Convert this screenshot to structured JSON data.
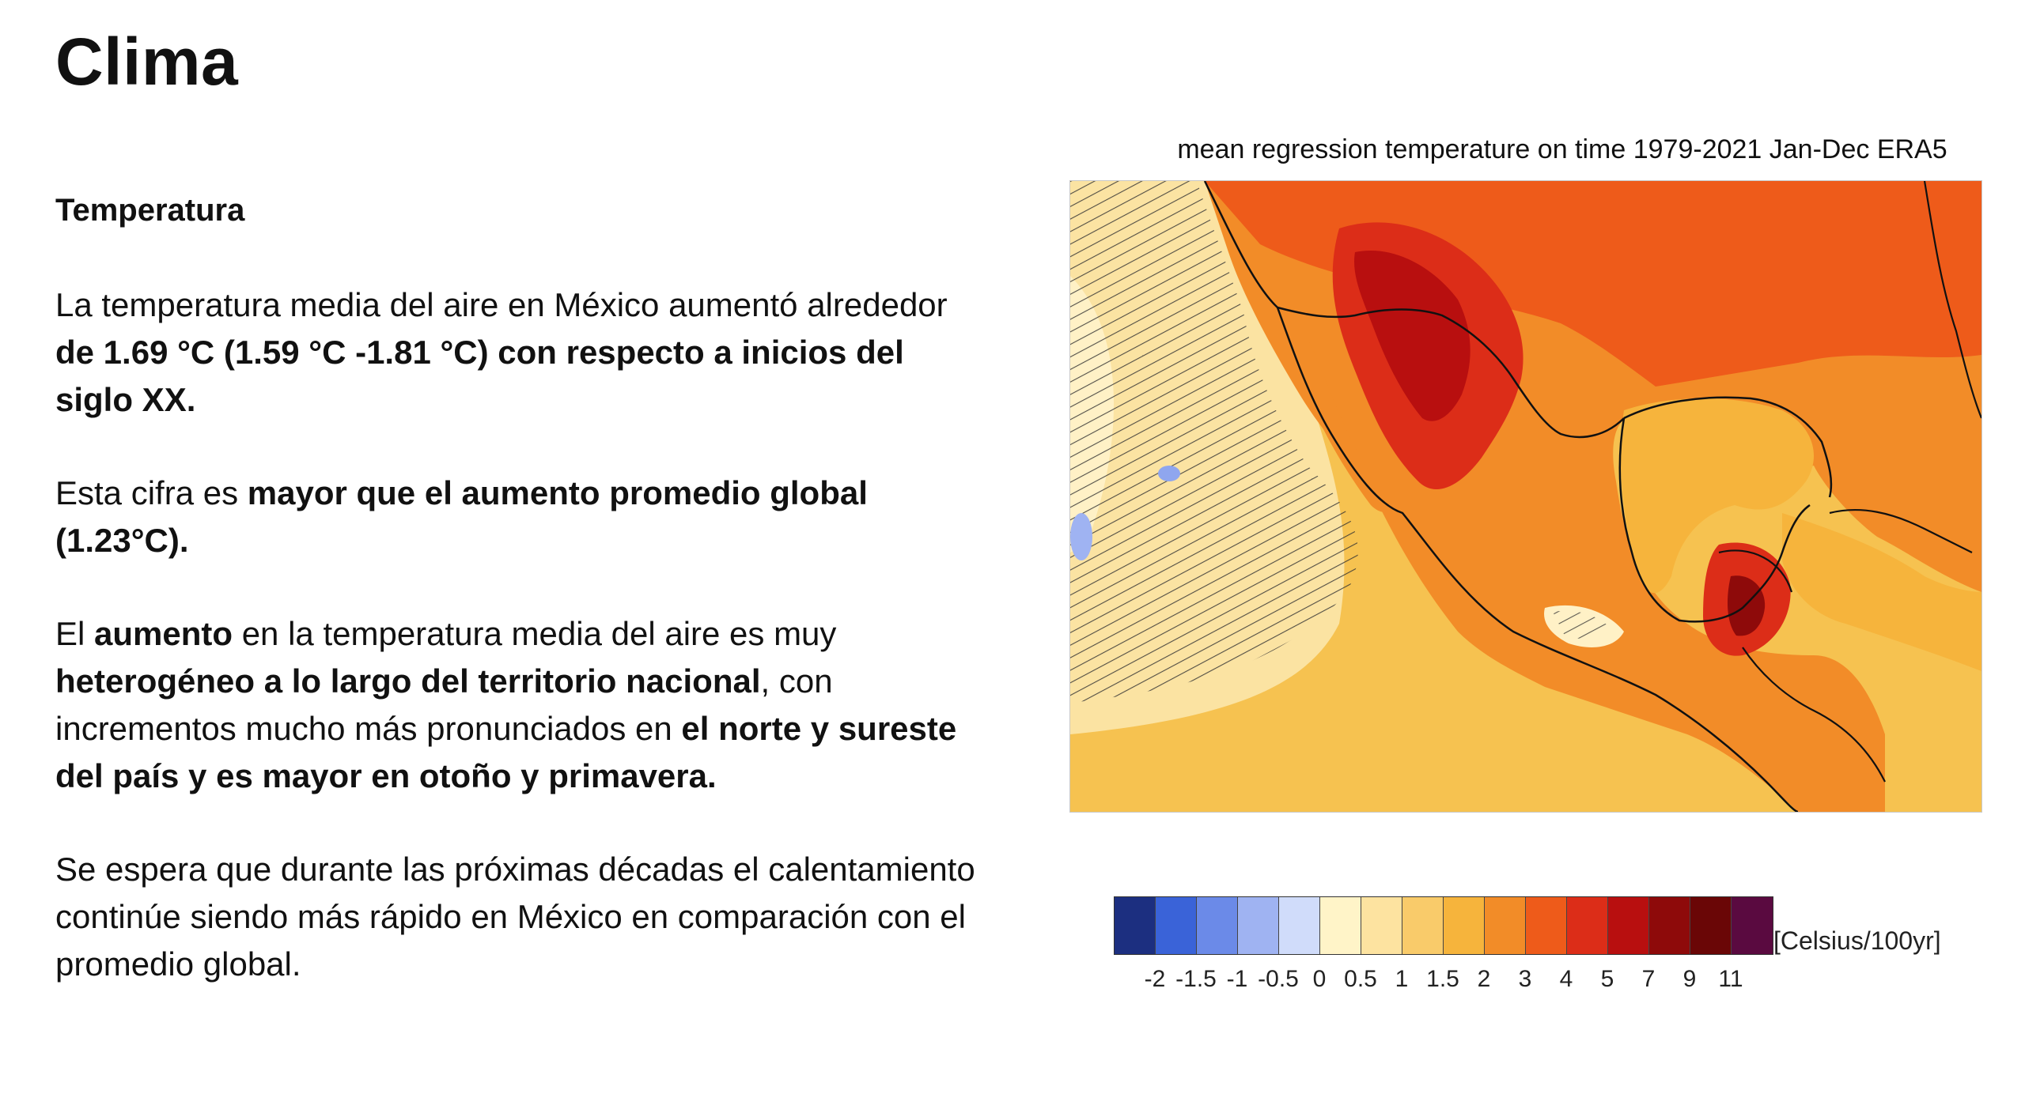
{
  "page": {
    "title": "Clima",
    "section_heading": "Temperatura"
  },
  "paragraphs": [
    {
      "id": "p1",
      "segments": [
        {
          "text": "La temperatura media del aire en México aumentó alrededor ",
          "bold": false
        },
        {
          "text": "de 1.69 °C (1.59 °C -1.81 °C) con respecto a inicios del siglo XX.",
          "bold": true
        }
      ]
    },
    {
      "id": "p2",
      "segments": [
        {
          "text": "Esta cifra es ",
          "bold": false
        },
        {
          "text": "mayor que el aumento promedio global (1.23°C).",
          "bold": true
        }
      ]
    },
    {
      "id": "p3",
      "segments": [
        {
          "text": "El ",
          "bold": false
        },
        {
          "text": "aumento",
          "bold": true
        },
        {
          "text": " en la temperatura media del aire es muy ",
          "bold": false
        },
        {
          "text": "heterogéneo a lo largo del territorio nacional",
          "bold": true
        },
        {
          "text": ", con incrementos mucho más pronunciados en ",
          "bold": false
        },
        {
          "text": "el norte y sureste del país  y es mayor en otoño y primavera.",
          "bold": true
        }
      ]
    },
    {
      "id": "p4",
      "segments": [
        {
          "text": "Se espera que durante las próximas décadas el calentamiento continúe siendo más rápido en México en comparación con el promedio global.",
          "bold": false
        }
      ]
    }
  ],
  "map": {
    "title": "mean regression temperature on time 1979-2021 Jan-Dec ERA5",
    "colorbar_unit": "[Celsius/100yr]",
    "colorbar_colors": [
      "#1c2f80",
      "#3a63d8",
      "#6b8ae8",
      "#9fb3f2",
      "#d0dcfa",
      "#fff4c8",
      "#fde3a0",
      "#f9cb6a",
      "#f6b43c",
      "#f28c28",
      "#ee5b1a",
      "#dc2d18",
      "#b80f0f",
      "#8e0a0a",
      "#6a0606",
      "#5a0a40"
    ],
    "colorbar_ticks": [
      "-2",
      "-1.5",
      "-1",
      "-0.5",
      "0",
      "0.5",
      "1",
      "1.5",
      "2",
      "3",
      "4",
      "5",
      "7",
      "9",
      "11"
    ]
  }
}
